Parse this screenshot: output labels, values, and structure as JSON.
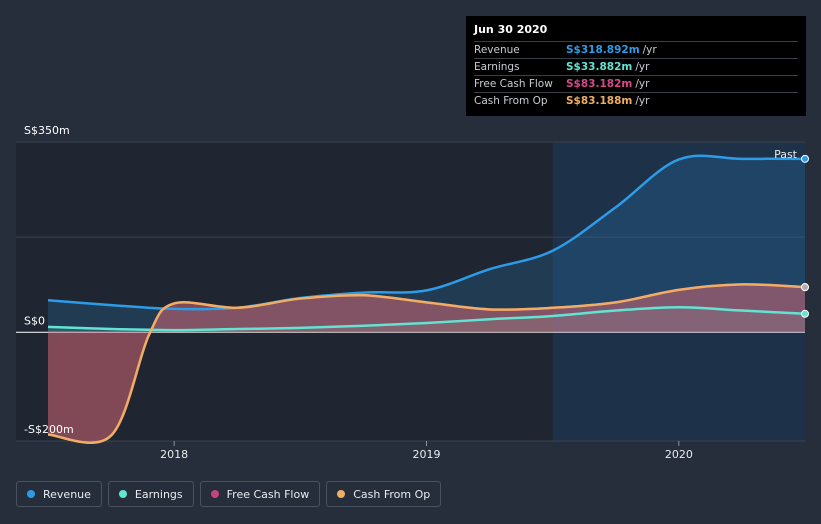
{
  "tooltip": {
    "date": "Jun 30 2020",
    "rows": [
      {
        "name": "Revenue",
        "value": "S$318.892m",
        "unit": "/yr",
        "color": "#2d9ce8"
      },
      {
        "name": "Earnings",
        "value": "S$33.882m",
        "unit": "/yr",
        "color": "#63e3d2"
      },
      {
        "name": "Free Cash Flow",
        "value": "S$83.182m",
        "unit": "/yr",
        "color": "#d6498a"
      },
      {
        "name": "Cash From Op",
        "value": "S$83.188m",
        "unit": "/yr",
        "color": "#efae64"
      }
    ]
  },
  "past_label": "Past",
  "legend": [
    {
      "label": "Revenue",
      "color": "#2d9ce8"
    },
    {
      "label": "Earnings",
      "color": "#63e3d2"
    },
    {
      "label": "Free Cash Flow",
      "color": "#c2467d"
    },
    {
      "label": "Cash From Op",
      "color": "#efae64"
    }
  ],
  "chart_data": {
    "type": "area",
    "x_ticks": [
      "2018",
      "2019",
      "2020"
    ],
    "y_labels": [
      "S$350m",
      "S$0",
      "-S$200m"
    ],
    "ylim": [
      -200,
      350
    ],
    "xlim": [
      2017.5,
      2020.5
    ],
    "series": [
      {
        "name": "Revenue",
        "color": "#2d9ce8",
        "x": [
          2017.5,
          2017.75,
          2018.0,
          2018.25,
          2018.5,
          2018.75,
          2019.0,
          2019.25,
          2019.5,
          2019.75,
          2020.0,
          2020.25,
          2020.5
        ],
        "y": [
          59,
          50,
          43,
          45,
          63,
          73,
          77,
          116,
          150,
          230,
          318,
          319,
          319
        ]
      },
      {
        "name": "Earnings",
        "color": "#63e3d2",
        "x": [
          2017.5,
          2017.75,
          2018.0,
          2018.25,
          2018.5,
          2018.75,
          2019.0,
          2019.25,
          2019.5,
          2019.75,
          2020.0,
          2020.25,
          2020.5
        ],
        "y": [
          10,
          6,
          4,
          6,
          8,
          12,
          17,
          24,
          30,
          40,
          46,
          40,
          34
        ]
      },
      {
        "name": "Free Cash Flow",
        "color": "#c2467d",
        "x": [
          2017.5,
          2017.75,
          2017.9,
          2018.0,
          2018.25,
          2018.5,
          2018.75,
          2019.0,
          2019.25,
          2019.5,
          2019.75,
          2020.0,
          2020.25,
          2020.5
        ],
        "y": [
          -188,
          -190,
          -5,
          53,
          45,
          62,
          68,
          55,
          42,
          45,
          55,
          78,
          88,
          83
        ]
      },
      {
        "name": "Cash From Op",
        "color": "#efae64",
        "x": [
          2017.5,
          2017.75,
          2017.9,
          2018.0,
          2018.25,
          2018.5,
          2018.75,
          2019.0,
          2019.25,
          2019.5,
          2019.75,
          2020.0,
          2020.25,
          2020.5
        ],
        "y": [
          -188,
          -190,
          -5,
          53,
          45,
          62,
          68,
          55,
          42,
          45,
          55,
          78,
          88,
          83
        ]
      }
    ]
  }
}
